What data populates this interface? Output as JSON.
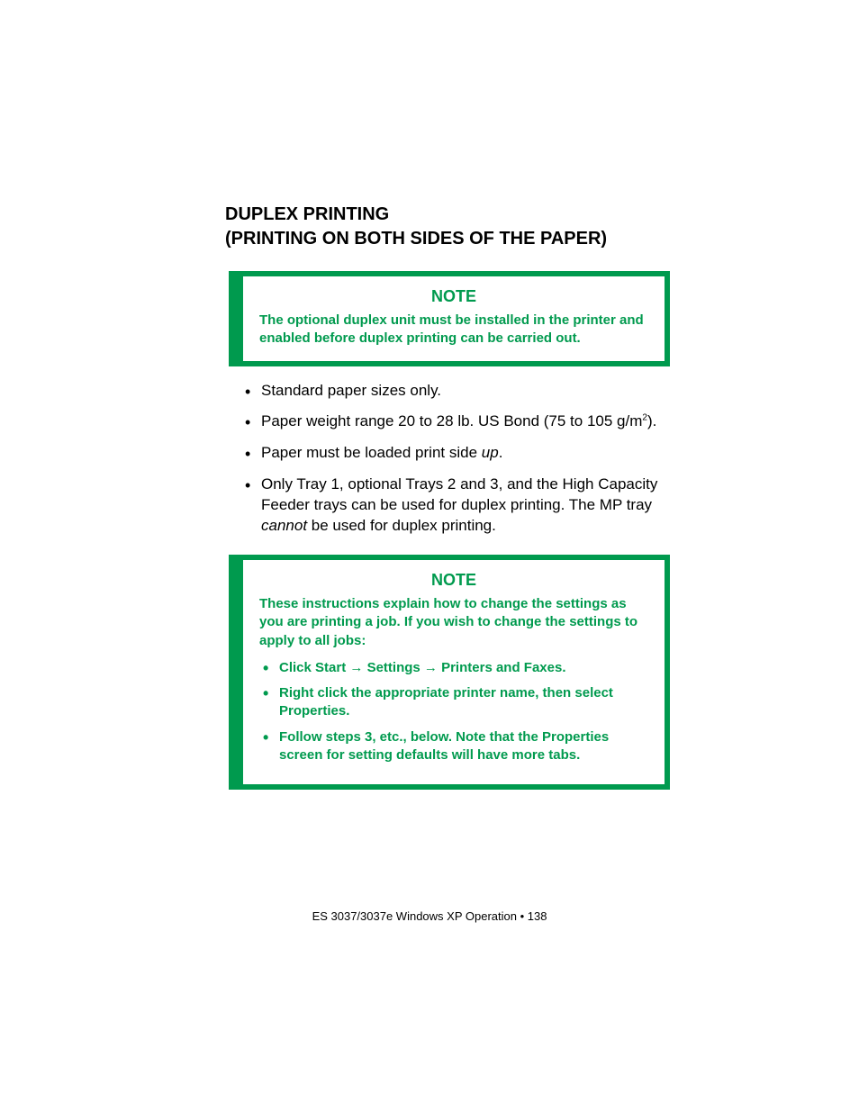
{
  "heading_line1": "DUPLEX PRINTING",
  "heading_line2": "(PRINTING ON BOTH SIDES OF THE PAPER)",
  "note1": {
    "title": "NOTE",
    "body": "The optional duplex unit must be installed in the printer and enabled before duplex printing can be carried out."
  },
  "bullets": {
    "b1": "Standard paper sizes only.",
    "b2_pre": "Paper weight range 20 to 28 lb. US Bond (75 to 105 g/m",
    "b2_sup": "2",
    "b2_post": ").",
    "b3_pre": "Paper must be loaded print side ",
    "b3_it": "up",
    "b3_post": ".",
    "b4_pre": "Only Tray 1, optional Trays 2 and 3, and the High Capacity Feeder trays can be used for duplex printing. The MP tray ",
    "b4_it": "cannot",
    "b4_post": " be used for duplex printing."
  },
  "note2": {
    "title": "NOTE",
    "intro": "These instructions explain how to change the settings as you are printing a job. If you wish to change the settings to apply to all jobs:",
    "li1_a": "Click ",
    "li1_b": "Start",
    "li1_c": " → ",
    "li1_d": "Settings",
    "li1_e": " → ",
    "li1_f": "Printers and Faxes.",
    "li2": "Right click the appropriate printer name, then select Properties.",
    "li3": "Follow steps 3, etc., below. Note that the Properties screen for setting defaults will have more tabs."
  },
  "footer": "ES 3037/3037e Windows XP Operation • 138",
  "colors": {
    "green": "#009a4e",
    "text": "#000000",
    "gray": "#7a8b7f",
    "background": "#ffffff"
  }
}
